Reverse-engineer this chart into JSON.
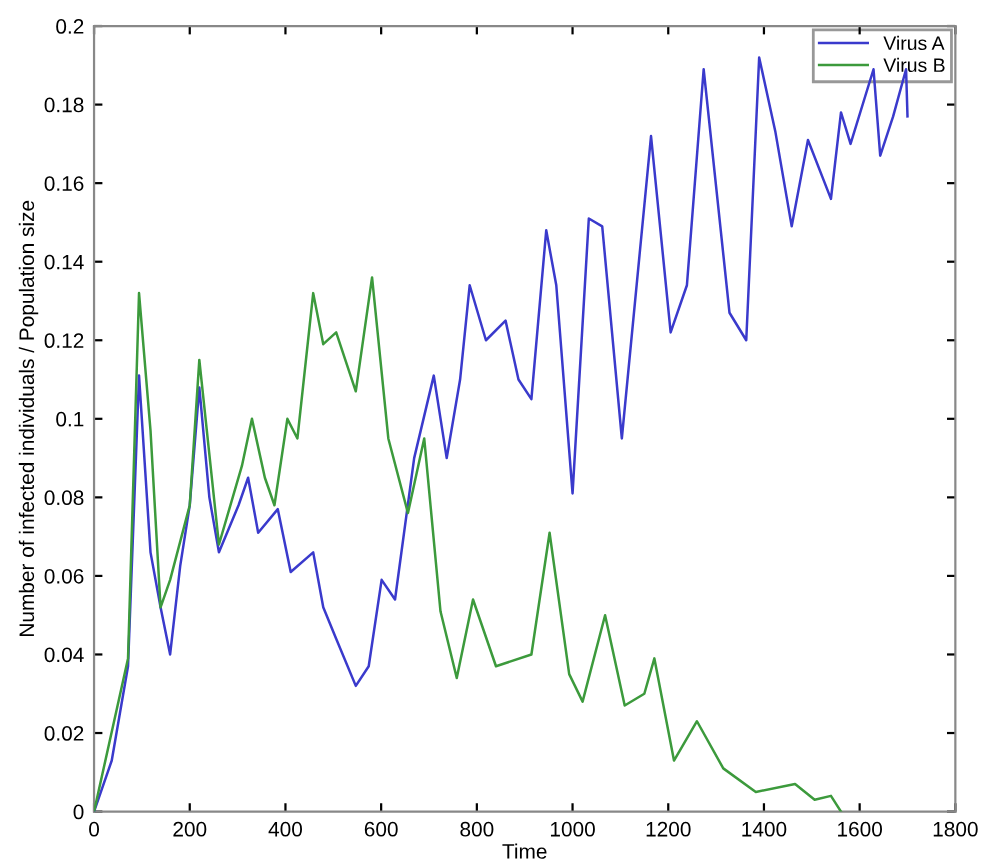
{
  "chart_data": {
    "type": "line",
    "xlabel": "Time",
    "ylabel": "Number of infected individuals / Population size",
    "xlim": [
      0,
      1800
    ],
    "xticks": [
      0,
      200,
      400,
      600,
      800,
      1000,
      1200,
      1400,
      1600,
      1800
    ],
    "ylim": [
      0,
      0.2
    ],
    "yticks": [
      0,
      0.02,
      0.04,
      0.06,
      0.08,
      0.1,
      0.12,
      0.14,
      0.16,
      0.18,
      0.2
    ],
    "grid": false,
    "legend": "top right",
    "marker": "none",
    "line_style": "solid",
    "series": [
      {
        "name": "Virus A",
        "color": "#3a3acc",
        "x": [
          0,
          37,
          71,
          94,
          118,
          139,
          159,
          180,
          200,
          220,
          241,
          261,
          302,
          322,
          343,
          384,
          411,
          458,
          479,
          506,
          547,
          574,
          601,
          629,
          669,
          710,
          737,
          765,
          785,
          819,
          860,
          887,
          914,
          945,
          966,
          1000,
          1034,
          1062,
          1103,
          1164,
          1205,
          1239,
          1274,
          1328,
          1363,
          1390,
          1424,
          1458,
          1492,
          1540,
          1561,
          1581,
          1629,
          1643,
          1670,
          1697,
          1700
        ],
        "values": [
          0,
          0.013,
          0.037,
          0.111,
          0.066,
          0.052,
          0.04,
          0.0625,
          0.078,
          0.108,
          0.08,
          0.066,
          0.078,
          0.085,
          0.071,
          0.077,
          0.061,
          0.066,
          0.052,
          0.044,
          0.032,
          0.037,
          0.059,
          0.054,
          0.09,
          0.111,
          0.09,
          0.11,
          0.134,
          0.12,
          0.125,
          0.11,
          0.105,
          0.148,
          0.134,
          0.081,
          0.151,
          0.149,
          0.095,
          0.172,
          0.122,
          0.134,
          0.189,
          0.127,
          0.12,
          0.192,
          0.173,
          0.149,
          0.171,
          0.156,
          0.178,
          0.17,
          0.189,
          0.167,
          0.177,
          0.189,
          0.177
        ]
      },
      {
        "name": "Virus B",
        "color": "#3c9a3c",
        "x": [
          0,
          71,
          94,
          118,
          139,
          159,
          200,
          220,
          261,
          309,
          330,
          357,
          377,
          404,
          425,
          458,
          479,
          506,
          547,
          581,
          615,
          656,
          690,
          724,
          758,
          792,
          840,
          914,
          952,
          993,
          1021,
          1068,
          1109,
          1150,
          1171,
          1212,
          1260,
          1315,
          1383,
          1465,
          1506,
          1540,
          1561
        ],
        "values": [
          0,
          0.039,
          0.132,
          0.097,
          0.052,
          0.059,
          0.078,
          0.115,
          0.068,
          0.088,
          0.1,
          0.085,
          0.078,
          0.1,
          0.095,
          0.132,
          0.119,
          0.122,
          0.107,
          0.136,
          0.095,
          0.076,
          0.095,
          0.051,
          0.034,
          0.054,
          0.037,
          0.04,
          0.071,
          0.035,
          0.028,
          0.05,
          0.027,
          0.03,
          0.039,
          0.013,
          0.023,
          0.011,
          0.005,
          0.007,
          0.003,
          0.004,
          0
        ]
      }
    ]
  }
}
